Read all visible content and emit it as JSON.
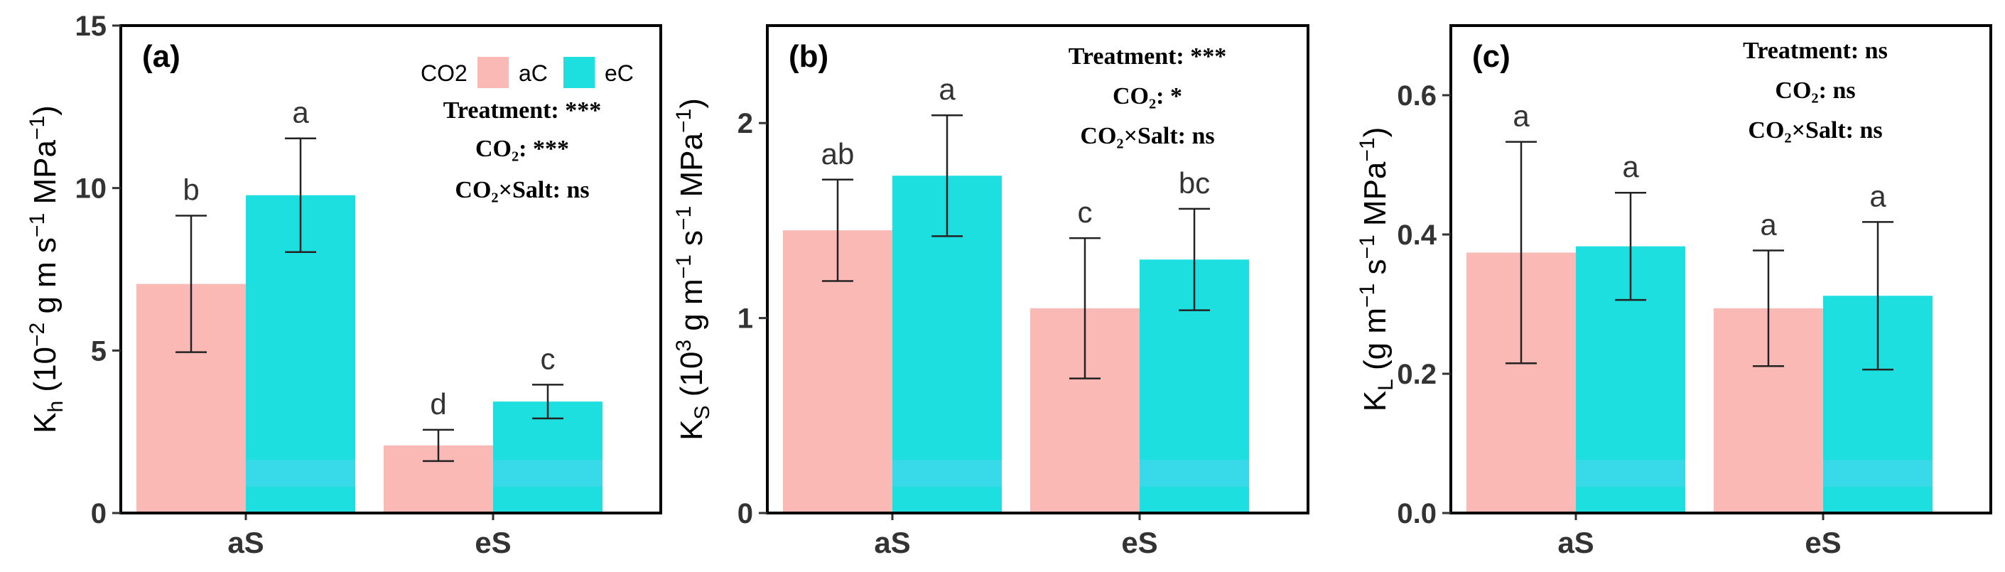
{
  "legend": {
    "title": "CO2",
    "entries": [
      {
        "key": "aC",
        "label": "aC",
        "color": "#fbb9b6"
      },
      {
        "key": "eC",
        "label": "eC",
        "color": "#1ddfe0"
      }
    ]
  },
  "chart_data": [
    {
      "type": "bar",
      "panel": "(a)",
      "categories": [
        "aS",
        "eS"
      ],
      "ylabel": {
        "base": "K",
        "sub": "h",
        "pre": " (10",
        "sup1": "−2",
        "mid": " g m s",
        "sup2": "−1",
        "post": " MPa",
        "sup3": "−1",
        "end": ")"
      },
      "ylim": [
        0,
        15
      ],
      "yticks": [
        0,
        5,
        10,
        15
      ],
      "yticklabels": [
        "0",
        "5",
        "10",
        "15"
      ],
      "series": [
        {
          "name": "aC",
          "values": [
            7.05,
            2.08
          ],
          "errors": [
            2.1,
            0.48
          ],
          "letters": [
            "b",
            "d"
          ]
        },
        {
          "name": "eC",
          "values": [
            9.78,
            3.43
          ],
          "errors": [
            1.75,
            0.52
          ],
          "letters": [
            "a",
            "c"
          ]
        }
      ],
      "stats": [
        "Treatment: ***",
        "CO₂: ***",
        "CO₂×Salt: ns"
      ]
    },
    {
      "type": "bar",
      "panel": "(b)",
      "categories": [
        "aS",
        "eS"
      ],
      "ylabel": {
        "base": "K",
        "sub": "S",
        "pre": " (10",
        "sup1": "3",
        "mid": " g m",
        "sup2": "−1",
        "post": " s",
        "sup3": "−1",
        "end": " MPa",
        "sup4": "−1",
        "tail": ")"
      },
      "ylim": [
        0,
        2.5
      ],
      "yticks": [
        0,
        1,
        2
      ],
      "yticklabels": [
        "0",
        "1",
        "2"
      ],
      "series": [
        {
          "name": "aC",
          "values": [
            1.45,
            1.05
          ],
          "errors": [
            0.26,
            0.36
          ],
          "letters": [
            "ab",
            "c"
          ]
        },
        {
          "name": "eC",
          "values": [
            1.73,
            1.3
          ],
          "errors": [
            0.31,
            0.26
          ],
          "letters": [
            "a",
            "bc"
          ]
        }
      ],
      "stats": [
        "Treatment: ***",
        "CO₂: *",
        "CO₂×Salt: ns"
      ]
    },
    {
      "type": "bar",
      "panel": "(c)",
      "categories": [
        "aS",
        "eS"
      ],
      "ylabel": {
        "base": "K",
        "sub": "L",
        "pre": " (g m",
        "sup1": "−1",
        "mid": " s",
        "sup2": "−1",
        "post": " MPa",
        "sup3": "−1",
        "end": ")"
      },
      "ylim": [
        0,
        0.7
      ],
      "yticks": [
        0,
        0.2,
        0.4,
        0.6
      ],
      "yticklabels": [
        "0.0",
        "0.2",
        "0.4",
        "0.6"
      ],
      "series": [
        {
          "name": "aC",
          "values": [
            0.374,
            0.294
          ],
          "errors": [
            0.159,
            0.083
          ],
          "letters": [
            "a",
            "a"
          ]
        },
        {
          "name": "eC",
          "values": [
            0.383,
            0.312
          ],
          "errors": [
            0.077,
            0.106
          ],
          "letters": [
            "a",
            "a"
          ]
        }
      ],
      "stats": [
        "Treatment: ns",
        "CO₂: ns",
        "CO₂×Salt: ns"
      ]
    }
  ]
}
